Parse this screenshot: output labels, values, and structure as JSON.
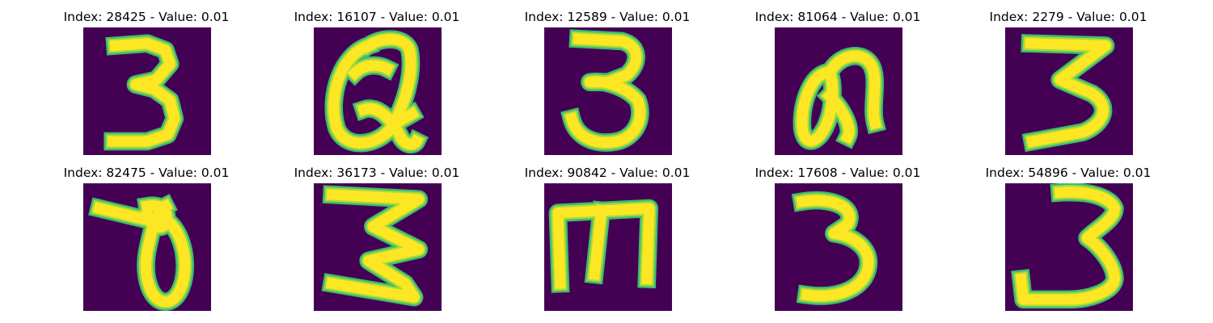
{
  "colors": {
    "background": "#440154",
    "stroke_outer": "#3fbc73",
    "stroke_mid": "#a8db34",
    "stroke_inner": "#fde725"
  },
  "panels": [
    {
      "title": "Index: 28425 - Value: 0.01",
      "glyph": "3"
    },
    {
      "title": "Index: 16107 - Value: 0.01",
      "glyph": "Q"
    },
    {
      "title": "Index: 12589 - Value: 0.01",
      "glyph": "3"
    },
    {
      "title": "Index: 81064 - Value: 0.01",
      "glyph": "a"
    },
    {
      "title": "Index: 2279 - Value: 0.01",
      "glyph": "3"
    },
    {
      "title": "Index: 82475 - Value: 0.01",
      "glyph": "0"
    },
    {
      "title": "Index: 36173 - Value: 0.01",
      "glyph": "3"
    },
    {
      "title": "Index: 90842 - Value: 0.01",
      "glyph": "m"
    },
    {
      "title": "Index: 17608 - Value: 0.01",
      "glyph": "3"
    },
    {
      "title": "Index: 54896 - Value: 0.01",
      "glyph": "3"
    }
  ]
}
